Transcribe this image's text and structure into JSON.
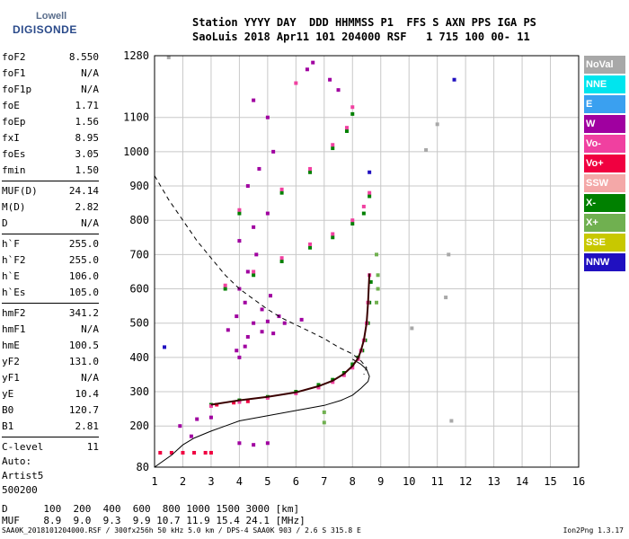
{
  "logo": {
    "line1": "Lowell",
    "line2": "DIGISONDE"
  },
  "header": {
    "line1": "Station YYYY DAY  DDD HHMMSS P1  FFS S AXN PPS IGA PS",
    "line2": "SaoLuis 2018 Apr11 101 204000 RSF   1 715 100 00- 11"
  },
  "params": [
    {
      "k": "foF2",
      "v": "8.550"
    },
    {
      "k": "foF1",
      "v": "N/A"
    },
    {
      "k": "foF1p",
      "v": "N/A"
    },
    {
      "k": "foE",
      "v": "1.71"
    },
    {
      "k": "foEp",
      "v": "1.56"
    },
    {
      "k": "fxI",
      "v": "8.95"
    },
    {
      "k": "foEs",
      "v": "3.05"
    },
    {
      "k": "fmin",
      "v": "1.50"
    },
    {
      "k": "MUF(D)",
      "v": "24.14"
    },
    {
      "k": "M(D)",
      "v": "2.82"
    },
    {
      "k": "D",
      "v": "N/A"
    },
    {
      "k": "h`F",
      "v": "255.0"
    },
    {
      "k": "h`F2",
      "v": "255.0"
    },
    {
      "k": "h`E",
      "v": "106.0"
    },
    {
      "k": "h`Es",
      "v": "105.0"
    },
    {
      "k": "hmF2",
      "v": "341.2"
    },
    {
      "k": "hmF1",
      "v": "N/A"
    },
    {
      "k": "hmE",
      "v": "100.5"
    },
    {
      "k": "yF2",
      "v": "131.0"
    },
    {
      "k": "yF1",
      "v": "N/A"
    },
    {
      "k": "yE",
      "v": "10.4"
    },
    {
      "k": "B0",
      "v": "120.7"
    },
    {
      "k": "B1",
      "v": "2.81"
    },
    {
      "k": "C-level",
      "v": "11"
    }
  ],
  "auto": {
    "line1": "Auto:",
    "line2": "Artist5",
    "line3": "500200"
  },
  "legend": [
    {
      "label": "NoVal",
      "color": "#a8a8a8"
    },
    {
      "label": "NNE",
      "color": "#00e5ee"
    },
    {
      "label": "E",
      "color": "#3aa0f0"
    },
    {
      "label": "W",
      "color": "#a000a0"
    },
    {
      "label": "Vo-",
      "color": "#f040a0"
    },
    {
      "label": "Vo+",
      "color": "#f00040"
    },
    {
      "label": "SSW",
      "color": "#f4a8a8"
    },
    {
      "label": "X-",
      "color": "#008000"
    },
    {
      "label": "X+",
      "color": "#70b050"
    },
    {
      "label": "SSE",
      "color": "#c8c800"
    },
    {
      "label": "NNW",
      "color": "#2010c0"
    }
  ],
  "muf_table": {
    "d_line": "D      100  200  400  600  800 1000 1500 3000 [km]",
    "muf_line": "MUF    8.9  9.0  9.3  9.9 10.7 11.9 15.4 24.1 [MHz]"
  },
  "footer": {
    "left": "SAA0K_2018101204000.RSF / 300fx256h 50 kHz 5.0 km / DPS-4 SAA0K 903 / 2.6 S 315.8 E",
    "right": "Ion2Png 1.3.17"
  },
  "chart_data": {
    "type": "scatter",
    "xlabel": "",
    "ylabel": "",
    "xlim": [
      1,
      16
    ],
    "ylim": [
      80,
      1280
    ],
    "x_ticks": [
      1,
      2,
      3,
      4,
      5,
      6,
      7,
      8,
      9,
      10,
      11,
      12,
      13,
      14,
      15,
      16
    ],
    "y_ticks": [
      80,
      200,
      300,
      400,
      500,
      600,
      700,
      800,
      900,
      1000,
      1100,
      1280
    ],
    "grid": true,
    "series": [
      {
        "name": "X-",
        "color": "#008000",
        "points": [
          [
            3.0,
            262
          ],
          [
            4.0,
            275
          ],
          [
            5.0,
            285
          ],
          [
            6.0,
            300
          ],
          [
            6.8,
            320
          ],
          [
            7.3,
            335
          ],
          [
            7.7,
            355
          ],
          [
            8.0,
            380
          ],
          [
            8.2,
            400
          ],
          [
            8.35,
            420
          ],
          [
            8.45,
            450
          ],
          [
            8.55,
            500
          ],
          [
            8.6,
            560
          ],
          [
            8.65,
            620
          ],
          [
            3.5,
            600
          ],
          [
            4.5,
            640
          ],
          [
            5.5,
            680
          ],
          [
            6.5,
            720
          ],
          [
            7.3,
            750
          ],
          [
            8.0,
            790
          ],
          [
            8.4,
            820
          ],
          [
            8.6,
            870
          ],
          [
            4.0,
            820
          ],
          [
            5.5,
            880
          ],
          [
            6.5,
            940
          ],
          [
            7.3,
            1010
          ],
          [
            7.8,
            1060
          ],
          [
            8.0,
            1110
          ]
        ]
      },
      {
        "name": "Vo-",
        "color": "#f040a0",
        "points": [
          [
            3.0,
            258
          ],
          [
            4.0,
            270
          ],
          [
            5.0,
            282
          ],
          [
            6.0,
            295
          ],
          [
            6.8,
            312
          ],
          [
            7.3,
            328
          ],
          [
            7.7,
            348
          ],
          [
            8.0,
            370
          ],
          [
            8.2,
            395
          ],
          [
            8.3,
            420
          ],
          [
            8.4,
            450
          ],
          [
            8.5,
            500
          ],
          [
            8.55,
            560
          ],
          [
            8.6,
            640
          ],
          [
            3.5,
            610
          ],
          [
            4.5,
            650
          ],
          [
            5.5,
            690
          ],
          [
            6.5,
            730
          ],
          [
            7.3,
            760
          ],
          [
            8.0,
            800
          ],
          [
            8.4,
            840
          ],
          [
            8.6,
            880
          ],
          [
            4.0,
            830
          ],
          [
            5.5,
            890
          ],
          [
            6.5,
            950
          ],
          [
            7.3,
            1020
          ],
          [
            7.8,
            1070
          ],
          [
            8.0,
            1130
          ],
          [
            6.0,
            1200
          ]
        ]
      },
      {
        "name": "Vo+",
        "color": "#f00040",
        "points": [
          [
            1.2,
            122
          ],
          [
            1.6,
            122
          ],
          [
            2.0,
            122
          ],
          [
            2.4,
            122
          ],
          [
            2.8,
            122
          ],
          [
            3.0,
            122
          ],
          [
            3.2,
            262
          ],
          [
            3.8,
            268
          ],
          [
            4.3,
            272
          ]
        ]
      },
      {
        "name": "W",
        "color": "#a000a0",
        "points": [
          [
            3.6,
            480
          ],
          [
            3.9,
            520
          ],
          [
            4.2,
            560
          ],
          [
            4.5,
            500
          ],
          [
            4.8,
            540
          ],
          [
            5.1,
            580
          ],
          [
            5.4,
            520
          ],
          [
            4.0,
            600
          ],
          [
            4.3,
            650
          ],
          [
            4.6,
            700
          ],
          [
            4.0,
            740
          ],
          [
            4.5,
            780
          ],
          [
            5.0,
            820
          ],
          [
            4.3,
            900
          ],
          [
            4.7,
            950
          ],
          [
            5.2,
            1000
          ],
          [
            4.5,
            1150
          ],
          [
            5.0,
            1100
          ],
          [
            2.5,
            220
          ],
          [
            3.0,
            225
          ],
          [
            4.0,
            150
          ],
          [
            4.5,
            145
          ],
          [
            5.0,
            150
          ],
          [
            2.3,
            170
          ],
          [
            1.9,
            200
          ],
          [
            4.2,
            432
          ],
          [
            4.0,
            400
          ],
          [
            4.3,
            460
          ],
          [
            3.9,
            420
          ],
          [
            5.2,
            470
          ],
          [
            4.8,
            475
          ],
          [
            5.0,
            505
          ],
          [
            5.6,
            500
          ],
          [
            6.2,
            510
          ],
          [
            6.4,
            1240
          ],
          [
            6.6,
            1260
          ],
          [
            7.2,
            1210
          ],
          [
            7.5,
            1180
          ]
        ]
      },
      {
        "name": "X+",
        "color": "#70b050",
        "points": [
          [
            8.85,
            560
          ],
          [
            8.9,
            600
          ],
          [
            8.9,
            640
          ],
          [
            8.85,
            700
          ],
          [
            7.0,
            210
          ],
          [
            7.0,
            240
          ]
        ]
      },
      {
        "name": "NNW",
        "color": "#2010c0",
        "points": [
          [
            1.35,
            430
          ],
          [
            8.6,
            940
          ],
          [
            11.6,
            1210
          ]
        ]
      },
      {
        "name": "NoVal",
        "color": "#a8a8a8",
        "points": [
          [
            1.5,
            1275
          ],
          [
            10.1,
            485
          ],
          [
            11.3,
            575
          ],
          [
            11.4,
            700
          ],
          [
            11.5,
            215
          ],
          [
            11.0,
            1080
          ],
          [
            10.6,
            1005
          ]
        ]
      }
    ],
    "curves": [
      {
        "name": "profile-solid",
        "style": "solid",
        "points": [
          [
            1.0,
            80
          ],
          [
            1.6,
            115
          ],
          [
            2.0,
            145
          ],
          [
            2.4,
            165
          ],
          [
            3.0,
            185
          ],
          [
            3.5,
            200
          ],
          [
            4.0,
            215
          ],
          [
            5.0,
            230
          ],
          [
            6.0,
            245
          ],
          [
            7.0,
            260
          ],
          [
            7.6,
            275
          ],
          [
            8.0,
            290
          ],
          [
            8.3,
            310
          ],
          [
            8.55,
            330
          ],
          [
            8.6,
            345
          ],
          [
            8.5,
            365
          ],
          [
            8.3,
            380
          ],
          [
            8.0,
            395
          ]
        ]
      },
      {
        "name": "profile-dashed",
        "style": "dashed",
        "points": [
          [
            1.0,
            930
          ],
          [
            1.5,
            860
          ],
          [
            2.0,
            800
          ],
          [
            2.5,
            740
          ],
          [
            3.0,
            690
          ],
          [
            3.5,
            640
          ],
          [
            4.0,
            600
          ],
          [
            4.5,
            570
          ],
          [
            5.0,
            540
          ],
          [
            5.5,
            515
          ],
          [
            6.0,
            495
          ],
          [
            6.5,
            475
          ],
          [
            7.0,
            455
          ],
          [
            7.5,
            430
          ],
          [
            8.0,
            410
          ],
          [
            8.3,
            390
          ],
          [
            8.5,
            370
          ],
          [
            8.4,
            350
          ]
        ]
      },
      {
        "name": "trace-dark",
        "style": "solid-dark",
        "points": [
          [
            3.0,
            262
          ],
          [
            4.0,
            275
          ],
          [
            5.0,
            285
          ],
          [
            6.0,
            298
          ],
          [
            6.8,
            316
          ],
          [
            7.3,
            332
          ],
          [
            7.7,
            352
          ],
          [
            8.0,
            375
          ],
          [
            8.2,
            398
          ],
          [
            8.3,
            420
          ],
          [
            8.4,
            450
          ],
          [
            8.5,
            500
          ],
          [
            8.55,
            560
          ],
          [
            8.6,
            645
          ]
        ]
      }
    ]
  }
}
